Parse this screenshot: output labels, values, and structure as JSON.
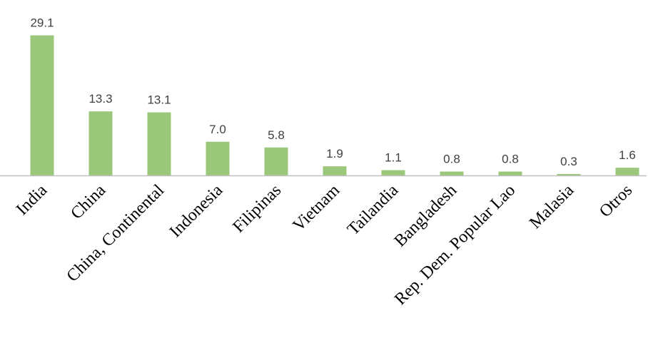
{
  "chart_data": {
    "type": "bar",
    "categories": [
      "India",
      "China",
      "China, Continental",
      "Indonesia",
      "Filipinas",
      "Vietnam",
      "Tailandia",
      "Bangladesh",
      "Rep. Dem. Popular Lao",
      "Malasia",
      "Otros"
    ],
    "values": [
      29.1,
      13.3,
      13.1,
      7.0,
      5.8,
      1.9,
      1.1,
      0.8,
      0.8,
      0.3,
      1.6
    ],
    "data_labels": [
      "29.1",
      "13.3",
      "13.1",
      "7.0",
      "5.8",
      "1.9",
      "1.1",
      "0.8",
      "0.8",
      "0.3",
      "1.6"
    ],
    "title": "",
    "xlabel": "",
    "ylabel": "",
    "ylim": [
      0,
      30
    ],
    "grid": false,
    "legend": "none",
    "bar_color": "#9bc77a",
    "axis_color": "#bfbfbf"
  }
}
